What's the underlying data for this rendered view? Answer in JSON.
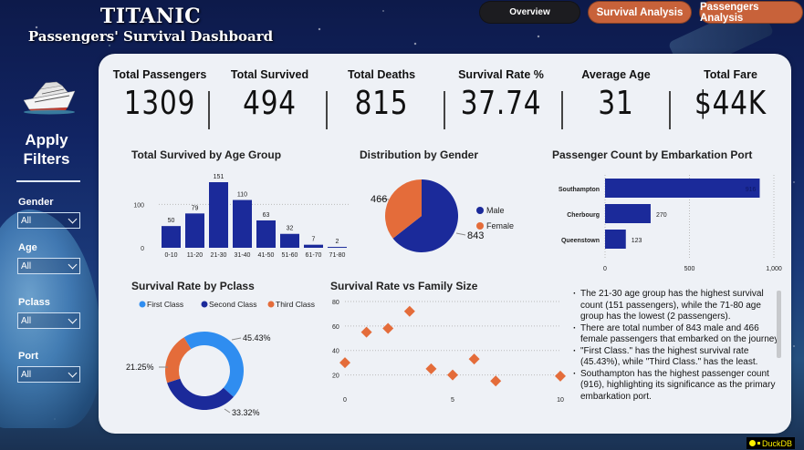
{
  "header": {
    "title": "TITANIC",
    "subtitle": "Passengers' Survival Dashboard"
  },
  "nav": {
    "buttons": [
      {
        "label": "Overview",
        "active": true
      },
      {
        "label": "Survival Analysis",
        "active": false
      },
      {
        "label": "Passengers Analysis",
        "active": false
      }
    ]
  },
  "sidebar": {
    "logo_icon": "cruise-ship-icon",
    "heading": "Apply Filters",
    "filters": [
      {
        "label": "Gender",
        "value": "All"
      },
      {
        "label": "Age",
        "value": "All"
      },
      {
        "label": "Pclass",
        "value": "All"
      },
      {
        "label": "Port",
        "value": "All"
      }
    ]
  },
  "kpis": [
    {
      "label": "Total Passengers",
      "value": "1309"
    },
    {
      "label": "Total Survived",
      "value": "494"
    },
    {
      "label": "Total Deaths",
      "value": "815"
    },
    {
      "label": "Survival Rate %",
      "value": "37.74"
    },
    {
      "label": "Average Age",
      "value": "31"
    },
    {
      "label": "Total Fare",
      "value": "$44K"
    }
  ],
  "colors": {
    "navy": "#1b2a9a",
    "orange": "#e46c3a",
    "light_blue": "#2f8df0",
    "nav_orange": "#c8623a"
  },
  "chart_data": [
    {
      "id": "age",
      "type": "bar",
      "title": "Total Survived by Age Group",
      "categories": [
        "0-10",
        "11-20",
        "21-30",
        "31-40",
        "41-50",
        "51-60",
        "61-70",
        "71-80"
      ],
      "values": [
        50,
        79,
        151,
        110,
        63,
        32,
        7,
        2
      ],
      "yticks": [
        0,
        100
      ],
      "ylim": [
        0,
        151
      ],
      "xlabel": "",
      "ylabel": "",
      "grid": true
    },
    {
      "id": "gender",
      "type": "pie",
      "title": "Distribution by Gender",
      "labels": [
        "Male",
        "Female"
      ],
      "values": [
        843,
        466
      ],
      "legend": "right"
    },
    {
      "id": "port",
      "type": "bar",
      "orientation": "horizontal",
      "title": "Passenger Count by Embarkation Port",
      "categories": [
        "Southampton",
        "Cherbourg",
        "Queenstown"
      ],
      "values": [
        916,
        270,
        123
      ],
      "xticks": [
        "0",
        "500",
        "1,000"
      ],
      "xlim": [
        0,
        1000
      ],
      "grid": true
    },
    {
      "id": "pclass",
      "type": "pie",
      "donut": true,
      "title": "Survival Rate by Pclass",
      "labels": [
        "First Class",
        "Second Class",
        "Third Class"
      ],
      "values": [
        45.43,
        33.32,
        21.25
      ],
      "value_labels": [
        "45.43%",
        "33.32%",
        "21.25%"
      ],
      "legend": "top"
    },
    {
      "id": "family",
      "type": "scatter",
      "title": "Survival Rate vs Family Size",
      "x": [
        0,
        1,
        2,
        3,
        4,
        5,
        6,
        7,
        10
      ],
      "y": [
        30,
        55,
        58,
        72,
        25,
        20,
        33,
        15,
        19
      ],
      "xticks": [
        0,
        5,
        10
      ],
      "yticks": [
        20,
        40,
        60,
        80
      ],
      "xlim": [
        0,
        10
      ],
      "ylim": [
        10,
        80
      ],
      "grid": true
    }
  ],
  "insights": [
    "The 21-30 age group has the highest survival count (151 passengers), while the 71-80 age group has the lowest (2 passengers).",
    "There are total number of 843 male and 466 female passengers that embarked on the journey.",
    "\"First Class.\" has the highest survival rate (45.43%), while \"Third Class.\" has the least.",
    "Southampton has the highest passenger count (916), highlighting its significance as the primary embarkation port."
  ],
  "brand": {
    "label": "DuckDB"
  }
}
